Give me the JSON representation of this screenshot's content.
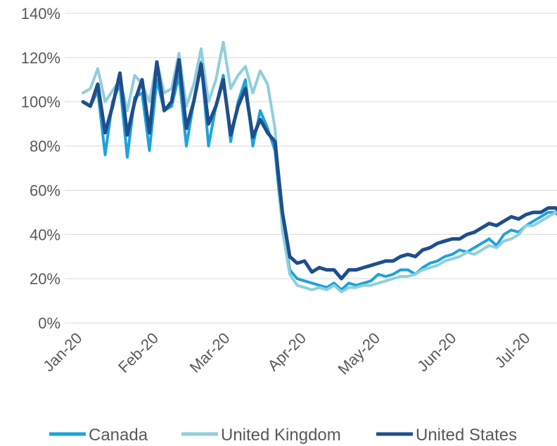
{
  "chart_data": {
    "type": "line",
    "x": [
      "2020-01-01",
      "2020-01-04",
      "2020-01-07",
      "2020-01-10",
      "2020-01-13",
      "2020-01-16",
      "2020-01-19",
      "2020-01-22",
      "2020-01-25",
      "2020-01-28",
      "2020-01-31",
      "2020-02-03",
      "2020-02-06",
      "2020-02-09",
      "2020-02-12",
      "2020-02-15",
      "2020-02-18",
      "2020-02-21",
      "2020-02-24",
      "2020-02-27",
      "2020-03-01",
      "2020-03-04",
      "2020-03-07",
      "2020-03-10",
      "2020-03-13",
      "2020-03-16",
      "2020-03-19",
      "2020-03-22",
      "2020-03-25",
      "2020-03-28",
      "2020-03-31",
      "2020-04-03",
      "2020-04-06",
      "2020-04-09",
      "2020-04-12",
      "2020-04-15",
      "2020-04-18",
      "2020-04-21",
      "2020-04-24",
      "2020-04-27",
      "2020-04-30",
      "2020-05-03",
      "2020-05-06",
      "2020-05-09",
      "2020-05-12",
      "2020-05-15",
      "2020-05-18",
      "2020-05-21",
      "2020-05-24",
      "2020-05-27",
      "2020-05-30",
      "2020-06-02",
      "2020-06-05",
      "2020-06-08",
      "2020-06-11",
      "2020-06-14",
      "2020-06-17",
      "2020-06-20",
      "2020-06-23",
      "2020-06-26",
      "2020-06-29",
      "2020-07-02",
      "2020-07-05",
      "2020-07-08",
      "2020-07-11",
      "2020-07-14",
      "2020-07-17",
      "2020-07-20",
      "2020-07-23",
      "2020-07-26"
    ],
    "series": [
      {
        "name": "Canada",
        "color": "#1ea3d9",
        "values": [
          100,
          98,
          105,
          76,
          100,
          108,
          75,
          102,
          104,
          78,
          110,
          96,
          98,
          112,
          80,
          100,
          118,
          80,
          98,
          112,
          82,
          100,
          110,
          80,
          96,
          88,
          78,
          44,
          24,
          20,
          19,
          18,
          17,
          16,
          18,
          15,
          18,
          17,
          18,
          19,
          22,
          21,
          22,
          24,
          24,
          22,
          25,
          27,
          28,
          30,
          31,
          33,
          32,
          34,
          36,
          38,
          35,
          40,
          42,
          41,
          44,
          46,
          48,
          50,
          50,
          46,
          52,
          52,
          54,
          53
        ]
      },
      {
        "name": "United Kingdom",
        "color": "#8fcfdb",
        "values": [
          104,
          106,
          115,
          100,
          105,
          110,
          96,
          112,
          108,
          100,
          118,
          104,
          106,
          122,
          98,
          108,
          124,
          100,
          110,
          127,
          106,
          112,
          116,
          104,
          114,
          108,
          88,
          42,
          22,
          17,
          16,
          15,
          16,
          15,
          17,
          14,
          16,
          16,
          17,
          17,
          18,
          19,
          20,
          21,
          21,
          22,
          24,
          25,
          26,
          28,
          29,
          30,
          32,
          31,
          33,
          35,
          34,
          37,
          38,
          40,
          44,
          44,
          46,
          48,
          50,
          56,
          58,
          62,
          60,
          65
        ]
      },
      {
        "name": "United States",
        "color": "#1f4e8c",
        "values": [
          100,
          98,
          108,
          86,
          98,
          113,
          85,
          100,
          110,
          86,
          118,
          96,
          100,
          119,
          88,
          100,
          117,
          90,
          98,
          110,
          85,
          98,
          106,
          84,
          92,
          86,
          82,
          50,
          30,
          27,
          28,
          23,
          25,
          24,
          24,
          20,
          24,
          24,
          25,
          26,
          27,
          28,
          28,
          30,
          31,
          30,
          33,
          34,
          36,
          37,
          38,
          38,
          40,
          41,
          43,
          45,
          44,
          46,
          48,
          47,
          49,
          50,
          50,
          52,
          52,
          49,
          53,
          53,
          55,
          52
        ]
      }
    ],
    "x_tick_labels": [
      "Jan-20",
      "Feb-20",
      "Mar-20",
      "Apr-20",
      "May-20",
      "Jun-20",
      "Jul-20"
    ],
    "y_tick_labels": [
      "0%",
      "20%",
      "40%",
      "60%",
      "80%",
      "100%",
      "120%",
      "140%"
    ],
    "ylim": [
      0,
      140
    ],
    "title": "",
    "xlabel": "",
    "ylabel": "",
    "grid": true,
    "legend": "bottom"
  }
}
